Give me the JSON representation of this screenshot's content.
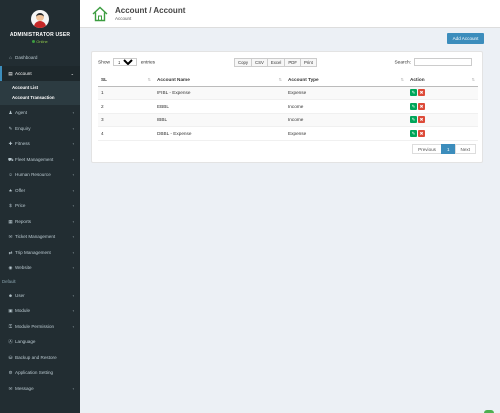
{
  "sidebar": {
    "user": {
      "name": "ADMINISTRATOR USER",
      "status": "Online"
    },
    "items": [
      {
        "label": "Dashboard",
        "icon": "⌂",
        "chevron": ""
      },
      {
        "label": "Account",
        "icon": "▤",
        "chevron": "⌄"
      },
      {
        "label": "Agent",
        "icon": "♟",
        "chevron": "‹"
      },
      {
        "label": "Enquiry",
        "icon": "✎",
        "chevron": "‹"
      },
      {
        "label": "Fitness",
        "icon": "✚",
        "chevron": "‹"
      },
      {
        "label": "Fleet Management",
        "icon": "⛟",
        "chevron": "‹"
      },
      {
        "label": "Human Resource",
        "icon": "☺",
        "chevron": "‹"
      },
      {
        "label": "Offer",
        "icon": "★",
        "chevron": "‹"
      },
      {
        "label": "Price",
        "icon": "$",
        "chevron": "‹"
      },
      {
        "label": "Reports",
        "icon": "▦",
        "chevron": "‹"
      },
      {
        "label": "Ticket Management",
        "icon": "✉",
        "chevron": "‹"
      },
      {
        "label": "Trip Management",
        "icon": "⇄",
        "chevron": "‹"
      },
      {
        "label": "Website",
        "icon": "◉",
        "chevron": "‹"
      },
      {
        "label": "User",
        "icon": "☻",
        "chevron": "‹"
      },
      {
        "label": "Module",
        "icon": "▣",
        "chevron": "‹"
      },
      {
        "label": "Module Permission",
        "icon": "⚿",
        "chevron": "‹"
      },
      {
        "label": "Language",
        "icon": "Ⓐ",
        "chevron": ""
      },
      {
        "label": "Backup and Restore",
        "icon": "⛁",
        "chevron": ""
      },
      {
        "label": "Application Setting",
        "icon": "⚙",
        "chevron": ""
      },
      {
        "label": "Message",
        "icon": "✉",
        "chevron": "‹"
      }
    ],
    "submenu": [
      "Account List",
      "Account Transaction"
    ],
    "header_label": "Default"
  },
  "header": {
    "title": "Account / Account",
    "subtitle": "Account"
  },
  "add_button": "Add Account",
  "controls": {
    "show_prefix": "Show",
    "show_value": "25",
    "show_suffix": "entries",
    "exports": [
      "Copy",
      "CSV",
      "Excel",
      "PDF",
      "Print"
    ],
    "search_label": "Search:"
  },
  "table": {
    "columns": [
      "SL",
      "Account Name",
      "Account Type",
      "Action"
    ],
    "rows": [
      {
        "sl": "1",
        "name": "IFIBL - Expense",
        "type": "Expense"
      },
      {
        "sl": "2",
        "name": "EBBL",
        "type": "Income"
      },
      {
        "sl": "3",
        "name": "IBBL",
        "type": "Income"
      },
      {
        "sl": "4",
        "name": "DBBL - Expense",
        "type": "Expense"
      }
    ],
    "edit_icon": "✎",
    "delete_icon": "✖"
  },
  "pagination": {
    "previous": "Previous",
    "current": "1",
    "next": "Next"
  },
  "colors": {
    "sidebar": "#222d32",
    "accent": "#3c8dbc",
    "edit": "#00a65a",
    "delete": "#dd4b39"
  }
}
